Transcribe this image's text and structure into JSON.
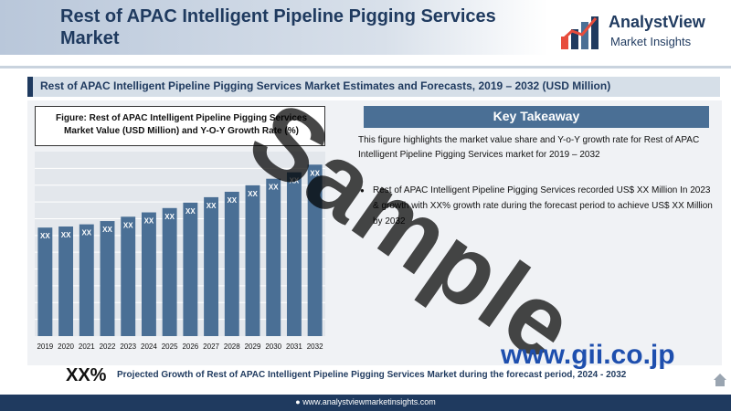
{
  "header": {
    "title": "Rest of APAC Intelligent Pipeline Pigging Services Market",
    "logo_name": "AnalystView",
    "logo_tagline": "Market Insights",
    "logo_icon": "bar-chart-logo-icon"
  },
  "subtitle": "Rest of APAC Intelligent Pipeline Pigging Services Market Estimates and Forecasts, 2019 – 2032 (USD Million)",
  "figure": {
    "title": "Figure: Rest of APAC Intelligent Pipeline Pigging Services Market Value (USD Million) and Y-O-Y Growth Rate (%)"
  },
  "chart_data": {
    "type": "bar",
    "categories": [
      "2019",
      "2020",
      "2021",
      "2022",
      "2023",
      "2024",
      "2025",
      "2026",
      "2027",
      "2028",
      "2029",
      "2030",
      "2031",
      "2032"
    ],
    "values": [
      1.0,
      1.01,
      1.03,
      1.06,
      1.1,
      1.14,
      1.18,
      1.23,
      1.28,
      1.33,
      1.39,
      1.45,
      1.51,
      1.58
    ],
    "data_label": "XX",
    "bar_color": "#4a6f95",
    "ylim": [
      0,
      1.7
    ]
  },
  "takeaway": {
    "title": "Key Takeaway",
    "intro": "This figure highlights the market value share and Y-o-Y growth rate for Rest of APAC Intelligent Pipeline Pigging Services market for 2019 – 2032",
    "bullet": "Rest of APAC Intelligent Pipeline Pigging Services recorded US$ XX Million In 2023 & growth with XX% growth rate during the forecast period to achieve US$ XX Million by 2032"
  },
  "growth": {
    "value": "XX%",
    "text": "Projected Growth of Rest of APAC Intelligent Pipeline Pigging Services Market during the forecast period, 2024 - 2032"
  },
  "footer": {
    "url": "www.analystviewmarketinsights.com"
  },
  "watermarks": {
    "sample": "Sample",
    "site": "www.gii.co.jp"
  }
}
